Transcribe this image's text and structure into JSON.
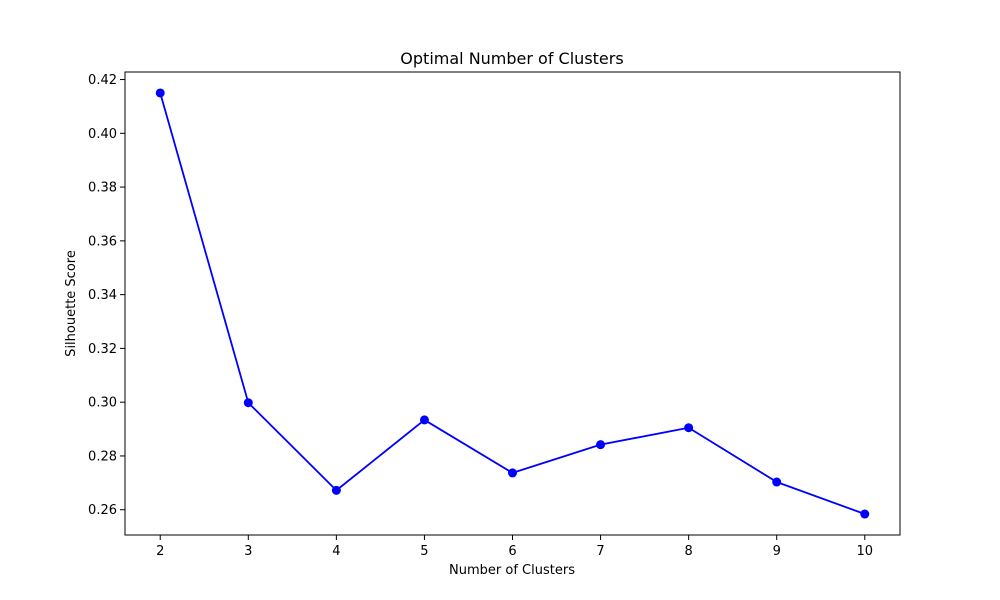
{
  "chart_data": {
    "type": "line",
    "title": "Optimal Number of Clusters",
    "xlabel": "Number of Clusters",
    "ylabel": "Silhouette Score",
    "x": [
      2,
      3,
      4,
      5,
      6,
      7,
      8,
      9,
      10
    ],
    "series": [
      {
        "name": "Silhouette Score",
        "values": [
          0.415,
          0.2998,
          0.2672,
          0.2934,
          0.2737,
          0.2842,
          0.2905,
          0.2703,
          0.2584
        ],
        "color": "#0000ff",
        "marker": "circle"
      }
    ],
    "xlim": [
      1.6,
      10.4
    ],
    "ylim": [
      0.2506,
      0.4228
    ],
    "x_ticks": [
      2,
      3,
      4,
      5,
      6,
      7,
      8,
      9,
      10
    ],
    "x_tick_labels": [
      "2",
      "3",
      "4",
      "5",
      "6",
      "7",
      "8",
      "9",
      "10"
    ],
    "y_ticks": [
      0.26,
      0.28,
      0.3,
      0.32,
      0.34,
      0.36,
      0.38,
      0.4,
      0.42
    ],
    "y_tick_labels": [
      "0.26",
      "0.28",
      "0.30",
      "0.32",
      "0.34",
      "0.36",
      "0.38",
      "0.40",
      "0.42"
    ],
    "grid": false,
    "legend": "none"
  }
}
